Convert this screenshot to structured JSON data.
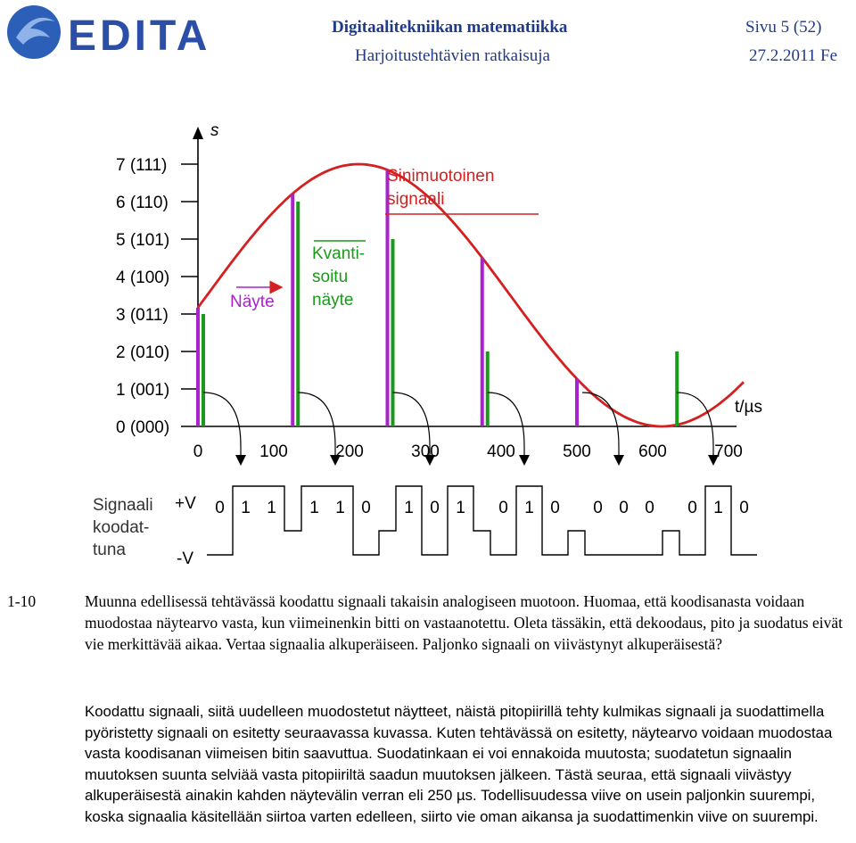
{
  "header": {
    "logo_text": "EDITA",
    "title": "Digitaalitekniikan matematiikka",
    "subtitle": "Harjoitustehtävien ratkaisuja",
    "page": "Sivu 5 (52)",
    "date": "27.2.2011 Fe"
  },
  "figure": {
    "level_labels": [
      "7  (111)",
      "6  (110)",
      "5  (101)",
      "4  (100)",
      "3  (011)",
      "2  (010)",
      "1  (001)",
      "0  (000)"
    ],
    "y_axis_label": "s",
    "x_axis_label": "t/µs",
    "time_ticks": [
      "0",
      "100",
      "200",
      "300",
      "400",
      "500",
      "600",
      "700"
    ],
    "callout_sine": "Sinimuotoinen signaali",
    "callout_sample": "Näyte",
    "callout_quantized": "Kvanti- soitu näyte",
    "encoded_label": "Signaali koodat- tuna",
    "level_high": "+V",
    "level_low": "-V",
    "codewords": [
      "0 1 1",
      "1 1 0",
      "1 0 1",
      "0 1 0",
      "0 0 0",
      "0 1 0"
    ],
    "colors": {
      "sine": "#d42020",
      "sample": "#aa22cc",
      "quantized": "#1a9a1a",
      "callout": "#d42020"
    }
  },
  "exercise": {
    "number": "1-10",
    "text": "Muunna edellisessä tehtävässä koodattu signaali takaisin analogiseen muotoon. Huomaa, että koodisanasta voidaan muodostaa näytearvo vasta, kun viimeinenkin bitti on vastaanotettu. Oleta tässäkin, että dekoodaus, pito ja suodatus eivät vie merkittävää aikaa. Vertaa signaalia alkuperäiseen. Paljonko signaali on viivästynyt alkuperäisestä?"
  },
  "answer": {
    "text": "Koodattu signaali, siitä uudelleen muodostetut näytteet, näistä pitopiirillä tehty kulmikas signaali ja suodattimella pyöristetty signaali on esitetty seuraavassa kuvassa. Kuten tehtävässä on esitetty, näytearvo voidaan muodostaa vasta koodisanan viimeisen bitin saavuttua. Suodatinkaan ei voi ennakoida muutosta; suodatetun signaalin muutoksen suunta selviää vasta pitopiiriltä saadun muutoksen jälkeen. Tästä seuraa, että signaali viivästyy alkuperäisestä ainakin kahden näytevälin verran eli 250 µs. Todellisuudessa viive on usein paljonkin suurempi, koska signaalia käsitellään siirtoa varten edelleen, siirto vie oman aikansa ja suodattimenkin viive on suurempi."
  }
}
